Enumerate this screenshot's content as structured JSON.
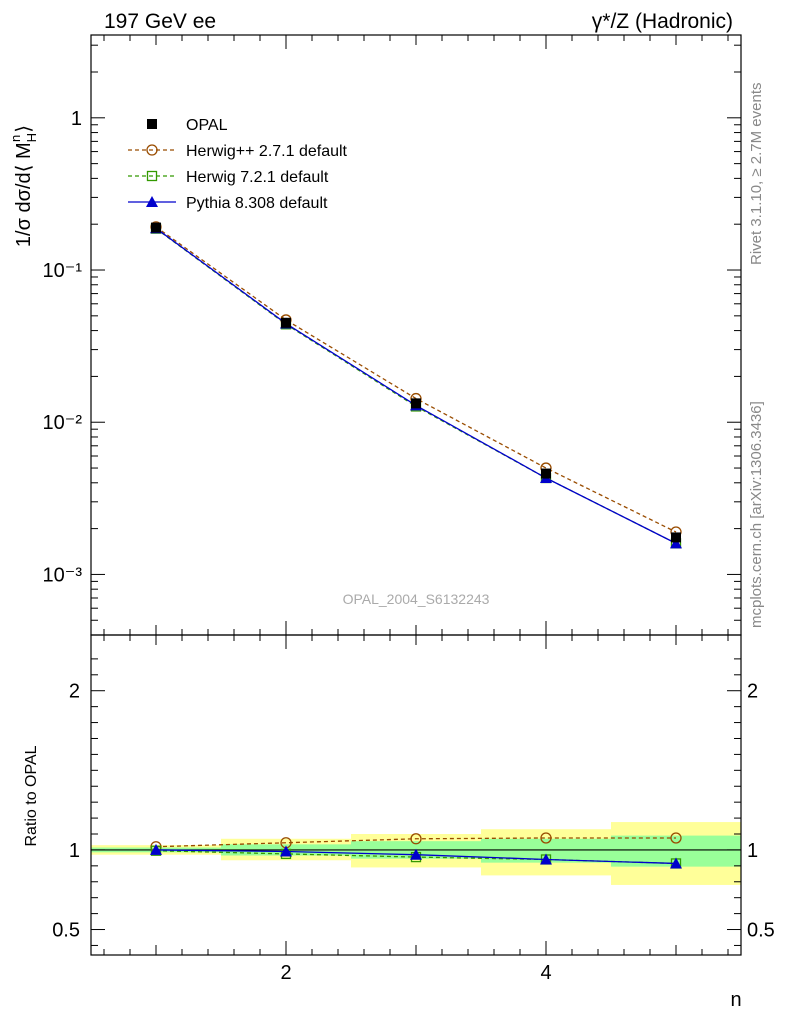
{
  "header": {
    "left": "197 GeV ee",
    "right": "γ*/Z (Hadronic)"
  },
  "side_labels": {
    "rivet": "Rivet 3.1.10, ≥ 2.7M events",
    "mcplots": "mcplots.cern.ch [arXiv:1306.3436]"
  },
  "watermark": "OPAL_2004_S6132243",
  "colors": {
    "opal": "#000000",
    "herwigpp": "#994c00",
    "herwig7": "#339900",
    "pythia": "#0000cc",
    "band_outer": "#ffff99",
    "band_inner": "#99ff99"
  },
  "chart_data": [
    {
      "type": "line",
      "panel": "main",
      "ylabel": "1/σ dσ/d⟨M_H^n⟩",
      "yscale": "log",
      "xlim": [
        0.5,
        5.5
      ],
      "ylim": [
        0.0004,
        3.5
      ],
      "y_ticks": [
        {
          "value": 1,
          "label": "1"
        },
        {
          "value": 0.1,
          "label": "10⁻¹"
        },
        {
          "value": 0.01,
          "label": "10⁻²"
        },
        {
          "value": 0.001,
          "label": "10⁻³"
        }
      ],
      "x": [
        1,
        2,
        3,
        4,
        5
      ],
      "series": [
        {
          "name": "OPAL",
          "marker": "filled-square",
          "values": [
            0.19,
            0.045,
            0.0133,
            0.0046,
            0.00175
          ]
        },
        {
          "name": "Herwig++ 2.7.1 default",
          "marker": "open-circle",
          "line": "dashed",
          "values": [
            0.192,
            0.047,
            0.0143,
            0.005,
            0.0019
          ]
        },
        {
          "name": "Herwig 7.2.1 default",
          "marker": "open-square",
          "line": "dashed",
          "values": [
            0.187,
            0.044,
            0.0127,
            0.0043,
            0.0016
          ]
        },
        {
          "name": "Pythia 8.308 default",
          "marker": "filled-triangle",
          "line": "solid",
          "values": [
            0.188,
            0.0445,
            0.0129,
            0.0043,
            0.0016
          ]
        }
      ]
    },
    {
      "type": "line",
      "panel": "ratio",
      "ylabel": "Ratio to OPAL",
      "xlabel": "n",
      "xlim": [
        0.5,
        5.5
      ],
      "ylim": [
        0.34,
        2.35
      ],
      "y_ticks": [
        {
          "value": 0.5,
          "label": "0.5"
        },
        {
          "value": 1,
          "label": "1"
        },
        {
          "value": 2,
          "label": "2"
        }
      ],
      "x_ticks": [
        {
          "value": 2,
          "label": "2"
        },
        {
          "value": 4,
          "label": "4"
        }
      ],
      "x": [
        1,
        2,
        3,
        4,
        5
      ],
      "bands": {
        "bins": [
          [
            0.5,
            1.5
          ],
          [
            1.5,
            2.5
          ],
          [
            2.5,
            3.5
          ],
          [
            3.5,
            4.5
          ],
          [
            4.5,
            5.5
          ]
        ],
        "outer": [
          [
            0.97,
            1.03
          ],
          [
            0.935,
            1.07
          ],
          [
            0.89,
            1.1
          ],
          [
            0.84,
            1.13
          ],
          [
            0.78,
            1.175
          ]
        ],
        "inner": [
          [
            0.985,
            1.015
          ],
          [
            0.965,
            1.035
          ],
          [
            0.945,
            1.055
          ],
          [
            0.92,
            1.07
          ],
          [
            0.895,
            1.09
          ]
        ]
      },
      "series": [
        {
          "name": "Herwig++ 2.7.1 default",
          "values": [
            1.02,
            1.045,
            1.07,
            1.075,
            1.075
          ]
        },
        {
          "name": "Herwig 7.2.1 default",
          "values": [
            0.995,
            0.975,
            0.955,
            0.94,
            0.915
          ]
        },
        {
          "name": "Pythia 8.308 default",
          "values": [
            1.0,
            0.99,
            0.97,
            0.94,
            0.915
          ]
        }
      ]
    }
  ]
}
